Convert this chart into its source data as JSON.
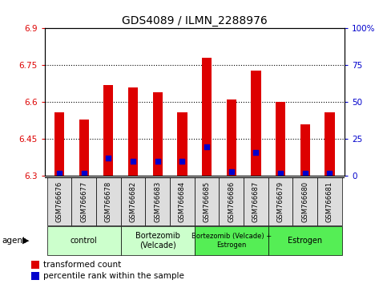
{
  "title": "GDS4089 / ILMN_2288976",
  "samples": [
    "GSM766676",
    "GSM766677",
    "GSM766678",
    "GSM766682",
    "GSM766683",
    "GSM766684",
    "GSM766685",
    "GSM766686",
    "GSM766687",
    "GSM766679",
    "GSM766680",
    "GSM766681"
  ],
  "transformed_count": [
    6.56,
    6.53,
    6.67,
    6.66,
    6.64,
    6.56,
    6.78,
    6.61,
    6.73,
    6.6,
    6.51,
    6.56
  ],
  "percentile_rank": [
    2,
    2,
    12,
    10,
    10,
    10,
    20,
    3,
    16,
    2,
    2,
    2
  ],
  "ymin": 6.3,
  "ymax": 6.9,
  "yticks": [
    6.3,
    6.45,
    6.6,
    6.75,
    6.9
  ],
  "ytick_labels": [
    "6.3",
    "6.45",
    "6.6",
    "6.75",
    "6.9"
  ],
  "right_yticks": [
    0,
    25,
    50,
    75,
    100
  ],
  "right_ytick_labels": [
    "0",
    "25",
    "50",
    "75",
    "100%"
  ],
  "bar_color": "#dd0000",
  "dot_color": "#0000cc",
  "groups": [
    {
      "label": "control",
      "start": 0,
      "end": 3,
      "color": "#ccffcc"
    },
    {
      "label": "Bortezomib\n(Velcade)",
      "start": 3,
      "end": 6,
      "color": "#ccffcc"
    },
    {
      "label": "Bortezomib (Velcade) +\nEstrogen",
      "start": 6,
      "end": 9,
      "color": "#44ee44"
    },
    {
      "label": "Estrogen",
      "start": 9,
      "end": 12,
      "color": "#44ee44"
    }
  ],
  "group_label": "agent",
  "legend_items": [
    {
      "label": "transformed count",
      "color": "#dd0000"
    },
    {
      "label": "percentile rank within the sample",
      "color": "#0000cc"
    }
  ],
  "bar_width": 0.4,
  "dot_size": 18,
  "background_color": "#ffffff",
  "tick_label_bg": "#dddddd"
}
